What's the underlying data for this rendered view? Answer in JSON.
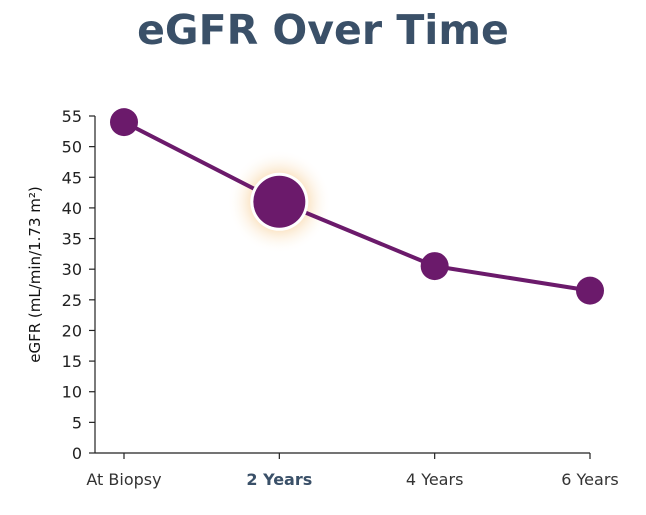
{
  "title": "eGFR Over Time",
  "chart_data": {
    "type": "line",
    "title": "eGFR Over Time",
    "xlabel": "",
    "ylabel": "eGFR (mL/min/1.73 m²)",
    "categories": [
      "At Biopsy",
      "2 Years",
      "4 Years",
      "6 Years"
    ],
    "values": [
      54,
      41,
      30.5,
      26.5
    ],
    "highlight_category": "2 Years",
    "ylim": [
      0,
      55
    ],
    "yticks": [
      0,
      5,
      10,
      15,
      20,
      25,
      30,
      35,
      40,
      45,
      50,
      55
    ],
    "grid": false,
    "legend": "none",
    "colors": {
      "line": "#6b1a6b",
      "point": "#6b1a6b",
      "highlight_glow": "#f3b564",
      "axis": "#222222",
      "title": "#3a5068"
    }
  }
}
